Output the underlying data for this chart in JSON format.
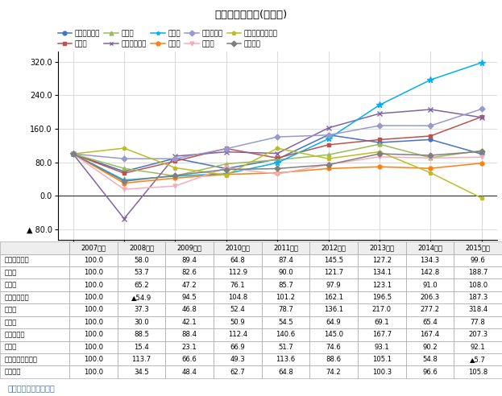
{
  "title": "産業別利益推移(非上場)",
  "years": [
    "2007年度",
    "2008年度",
    "2009年度",
    "2010年度",
    "2011年度",
    "2012年度",
    "2013年度",
    "2014年度",
    "2015年度"
  ],
  "series": [
    {
      "name": "サービス業他",
      "color": "#4472C4",
      "marker": "o",
      "values": [
        100.0,
        58.0,
        89.4,
        64.8,
        87.4,
        145.5,
        127.2,
        134.3,
        99.6
      ]
    },
    {
      "name": "運輸業",
      "color": "#C0504D",
      "marker": "s",
      "values": [
        100.0,
        53.7,
        82.6,
        112.9,
        90.0,
        121.7,
        134.1,
        142.8,
        188.7
      ]
    },
    {
      "name": "卸売業",
      "color": "#9BBB59",
      "marker": "^",
      "values": [
        100.0,
        65.2,
        47.2,
        76.1,
        85.7,
        97.9,
        123.1,
        91.0,
        108.0
      ]
    },
    {
      "name": "金融・保険業",
      "color": "#8064A2",
      "marker": "x",
      "values": [
        100.0,
        -54.9,
        94.5,
        104.8,
        101.2,
        162.1,
        196.5,
        206.3,
        187.3
      ]
    },
    {
      "name": "建設業",
      "color": "#00B0F0",
      "marker": "*",
      "values": [
        100.0,
        37.3,
        46.8,
        52.4,
        78.7,
        136.1,
        217.0,
        277.2,
        318.4
      ]
    },
    {
      "name": "小売業",
      "color": "#FF7F0E",
      "marker": "o",
      "values": [
        100.0,
        30.0,
        42.1,
        50.9,
        54.5,
        64.9,
        69.1,
        65.4,
        77.8
      ]
    },
    {
      "name": "情報通信業",
      "color": "#9999CC",
      "marker": "D",
      "values": [
        100.0,
        88.5,
        88.4,
        112.4,
        140.6,
        145.0,
        167.7,
        167.4,
        207.3
      ]
    },
    {
      "name": "製造業",
      "color": "#F4ACBA",
      "marker": "v",
      "values": [
        100.0,
        15.4,
        23.1,
        66.9,
        51.7,
        74.6,
        93.1,
        90.2,
        92.1
      ]
    },
    {
      "name": "農・林・漁・鉱業",
      "color": "#BCBD22",
      "marker": "p",
      "values": [
        100.0,
        113.7,
        66.6,
        49.3,
        113.6,
        88.6,
        105.1,
        54.8,
        -5.7
      ]
    },
    {
      "name": "不動産業",
      "color": "#7F7F7F",
      "marker": "D",
      "values": [
        100.0,
        34.5,
        48.4,
        62.7,
        64.8,
        74.2,
        100.3,
        96.6,
        105.8
      ]
    }
  ],
  "markers": [
    "o",
    "s",
    "^",
    "x",
    "*",
    "o",
    "D",
    "v",
    "p",
    "D"
  ],
  "markersizes": [
    3.5,
    3.5,
    3.5,
    4.5,
    5.5,
    3.5,
    3.5,
    3.5,
    3.5,
    3.5
  ],
  "yticks": [
    -80.0,
    0.0,
    80.0,
    160.0,
    240.0,
    320.0
  ],
  "ylim": [
    -105,
    345
  ],
  "source": "東京商工リサーチ調べ",
  "bold_rows": [
    "運輸業",
    "建設業",
    "情報通信業",
    "農・林・漁・鉱業"
  ],
  "table_data": [
    [
      "サービス業他",
      "100.0",
      "58.0",
      "89.4",
      "64.8",
      "87.4",
      "145.5",
      "127.2",
      "134.3",
      "99.6"
    ],
    [
      "運輸業",
      "100.0",
      "53.7",
      "82.6",
      "112.9",
      "90.0",
      "121.7",
      "134.1",
      "142.8",
      "188.7"
    ],
    [
      "卸売業",
      "100.0",
      "65.2",
      "47.2",
      "76.1",
      "85.7",
      "97.9",
      "123.1",
      "91.0",
      "108.0"
    ],
    [
      "金融・保険業",
      "100.0",
      "▲54.9",
      "94.5",
      "104.8",
      "101.2",
      "162.1",
      "196.5",
      "206.3",
      "187.3"
    ],
    [
      "建設業",
      "100.0",
      "37.3",
      "46.8",
      "52.4",
      "78.7",
      "136.1",
      "217.0",
      "277.2",
      "318.4"
    ],
    [
      "小売業",
      "100.0",
      "30.0",
      "42.1",
      "50.9",
      "54.5",
      "64.9",
      "69.1",
      "65.4",
      "77.8"
    ],
    [
      "情報通信業",
      "100.0",
      "88.5",
      "88.4",
      "112.4",
      "140.6",
      "145.0",
      "167.7",
      "167.4",
      "207.3"
    ],
    [
      "製造業",
      "100.0",
      "15.4",
      "23.1",
      "66.9",
      "51.7",
      "74.6",
      "93.1",
      "90.2",
      "92.1"
    ],
    [
      "農・林・漁・鉱業",
      "100.0",
      "113.7",
      "66.6",
      "49.3",
      "113.6",
      "88.6",
      "105.1",
      "54.8",
      "▲5.7"
    ],
    [
      "不動産業",
      "100.0",
      "34.5",
      "48.4",
      "62.7",
      "64.8",
      "74.2",
      "100.3",
      "96.6",
      "105.8"
    ]
  ]
}
